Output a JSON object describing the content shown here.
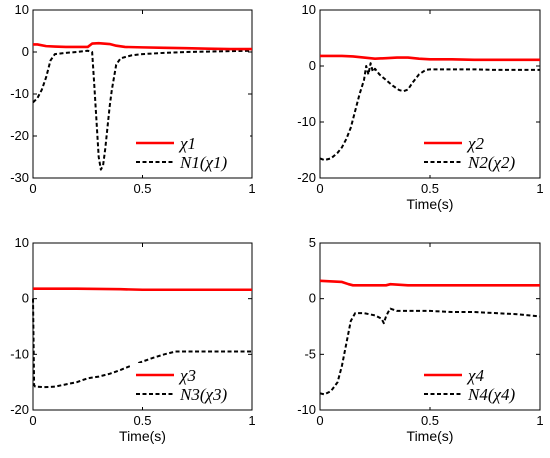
{
  "colors": {
    "chi": "#ff0000",
    "N": "#000000"
  },
  "chart_data": [
    {
      "type": "line",
      "xlabel": "",
      "ylabel": "",
      "xlim": [
        0,
        1
      ],
      "ylim": [
        -30,
        10
      ],
      "xticks": [
        0,
        0.5,
        1
      ],
      "xtick_labels": [
        "0",
        "0.5",
        "1"
      ],
      "yticks": [
        -30,
        -20,
        -10,
        0,
        10
      ],
      "ytick_labels": [
        "-30",
        "-20",
        "-10",
        "0",
        "10"
      ],
      "legend": "bottom-right",
      "series": [
        {
          "name": "χ1",
          "style": "solid",
          "color": "#ff0000",
          "x": [
            0,
            0.02,
            0.06,
            0.1,
            0.15,
            0.2,
            0.25,
            0.27,
            0.3,
            0.35,
            0.38,
            0.42,
            0.5,
            0.6,
            0.7,
            0.8,
            0.9,
            1
          ],
          "y": [
            1.8,
            1.8,
            1.4,
            1.3,
            1.2,
            1.2,
            1.2,
            2,
            2.1,
            1.9,
            1.5,
            1.2,
            1.1,
            1.0,
            0.9,
            0.8,
            0.7,
            0.7
          ]
        },
        {
          "name": "N1(χ1)",
          "style": "dashed",
          "color": "#000000",
          "x": [
            0,
            0.01,
            0.02,
            0.04,
            0.06,
            0.08,
            0.1,
            0.15,
            0.2,
            0.25,
            0.27,
            0.28,
            0.3,
            0.31,
            0.32,
            0.33,
            0.34,
            0.35,
            0.36,
            0.37,
            0.38,
            0.4,
            0.45,
            0.5,
            0.6,
            0.7,
            0.8,
            0.9,
            1
          ],
          "y": [
            -12,
            -11.5,
            -11,
            -9,
            -6,
            -2,
            -0.5,
            -0.2,
            0,
            0.3,
            0,
            -8,
            -25,
            -28,
            -27,
            -23,
            -18,
            -13,
            -9,
            -6,
            -3,
            -1.5,
            -0.8,
            -0.5,
            -0.2,
            0,
            0.1,
            0.2,
            0.3
          ]
        }
      ]
    },
    {
      "type": "line",
      "xlabel": "Time(s)",
      "ylabel": "",
      "xlim": [
        0,
        1
      ],
      "ylim": [
        -20,
        10
      ],
      "xticks": [
        0,
        0.5,
        1
      ],
      "xtick_labels": [
        "0",
        "0.5",
        "1"
      ],
      "yticks": [
        -20,
        -10,
        0,
        10
      ],
      "ytick_labels": [
        "-20",
        "-10",
        "0",
        "10"
      ],
      "legend": "bottom-right",
      "series": [
        {
          "name": "χ2",
          "style": "solid",
          "color": "#ff0000",
          "x": [
            0,
            0.1,
            0.15,
            0.2,
            0.25,
            0.3,
            0.35,
            0.4,
            0.45,
            0.5,
            0.6,
            0.7,
            0.8,
            0.9,
            1
          ],
          "y": [
            1.8,
            1.8,
            1.7,
            1.5,
            1.3,
            1.4,
            1.5,
            1.5,
            1.3,
            1.2,
            1.2,
            1.1,
            1.1,
            1.1,
            1.1
          ]
        },
        {
          "name": "N2(χ2)",
          "style": "dashed",
          "color": "#000000",
          "x": [
            0,
            0.02,
            0.05,
            0.08,
            0.1,
            0.12,
            0.14,
            0.16,
            0.18,
            0.2,
            0.21,
            0.22,
            0.23,
            0.24,
            0.25,
            0.27,
            0.3,
            0.33,
            0.36,
            0.38,
            0.4,
            0.42,
            0.45,
            0.48,
            0.5,
            0.6,
            0.7,
            0.8,
            0.9,
            1
          ],
          "y": [
            -16.5,
            -16.8,
            -16.5,
            -15.5,
            -14.5,
            -13,
            -11,
            -8,
            -5,
            -2.5,
            0,
            -1.5,
            0.5,
            -1,
            -0.5,
            -1.5,
            -2.5,
            -3.5,
            -4.3,
            -4.5,
            -4.2,
            -3,
            -1.5,
            -0.7,
            -0.6,
            -0.6,
            -0.6,
            -0.7,
            -0.7,
            -0.7
          ]
        }
      ]
    },
    {
      "type": "line",
      "xlabel": "Time(s)",
      "ylabel": "",
      "xlim": [
        0,
        1
      ],
      "ylim": [
        -20,
        10
      ],
      "xticks": [
        0,
        0.5,
        1
      ],
      "xtick_labels": [
        "0",
        "0.5",
        "1"
      ],
      "yticks": [
        -20,
        -10,
        0,
        10
      ],
      "ytick_labels": [
        "-20",
        "-10",
        "0",
        "10"
      ],
      "legend": "bottom-right",
      "series": [
        {
          "name": "χ3",
          "style": "solid",
          "color": "#ff0000",
          "x": [
            0,
            0.2,
            0.4,
            0.5,
            0.6,
            0.8,
            1
          ],
          "y": [
            1.8,
            1.8,
            1.7,
            1.6,
            1.6,
            1.6,
            1.6
          ]
        },
        {
          "name": "N3(χ3)",
          "style": "dashed",
          "color": "#000000",
          "x": [
            0,
            0.005,
            0.01,
            0.05,
            0.1,
            0.2,
            0.25,
            0.3,
            0.35,
            0.4,
            0.45,
            0.5,
            0.55,
            0.6,
            0.65,
            0.7,
            0.8,
            0.9,
            1
          ],
          "y": [
            0,
            -15.5,
            -15.8,
            -15.9,
            -15.8,
            -15,
            -14.3,
            -14,
            -13.5,
            -12.8,
            -12,
            -11.3,
            -10.6,
            -10,
            -9.5,
            -9.5,
            -9.5,
            -9.5,
            -9.5
          ]
        }
      ]
    },
    {
      "type": "line",
      "xlabel": "Time(s)",
      "ylabel": "",
      "xlim": [
        0,
        1
      ],
      "ylim": [
        -10,
        5
      ],
      "xticks": [
        0,
        0.5,
        1
      ],
      "xtick_labels": [
        "0",
        "0.5",
        "1"
      ],
      "yticks": [
        -10,
        -5,
        0,
        5
      ],
      "ytick_labels": [
        "-10",
        "-5",
        "0",
        "5"
      ],
      "legend": "bottom-right",
      "series": [
        {
          "name": "χ4",
          "style": "solid",
          "color": "#ff0000",
          "x": [
            0,
            0.1,
            0.13,
            0.15,
            0.2,
            0.3,
            0.32,
            0.4,
            0.5,
            0.6,
            0.8,
            1
          ],
          "y": [
            1.6,
            1.5,
            1.3,
            1.2,
            1.2,
            1.2,
            1.3,
            1.2,
            1.2,
            1.2,
            1.2,
            1.2
          ]
        },
        {
          "name": "N4(χ4)",
          "style": "dashed",
          "color": "#000000",
          "x": [
            0,
            0.02,
            0.05,
            0.08,
            0.1,
            0.12,
            0.14,
            0.16,
            0.2,
            0.25,
            0.28,
            0.29,
            0.3,
            0.31,
            0.32,
            0.35,
            0.4,
            0.5,
            0.6,
            0.7,
            0.8,
            0.9,
            1
          ],
          "y": [
            -8.5,
            -8.6,
            -8.3,
            -7.5,
            -6,
            -4,
            -2,
            -1.3,
            -1.3,
            -1.5,
            -1.8,
            -2.2,
            -1.6,
            -1.2,
            -0.9,
            -1.1,
            -1.1,
            -1.1,
            -1.2,
            -1.2,
            -1.3,
            -1.4,
            -1.6
          ]
        }
      ]
    }
  ]
}
